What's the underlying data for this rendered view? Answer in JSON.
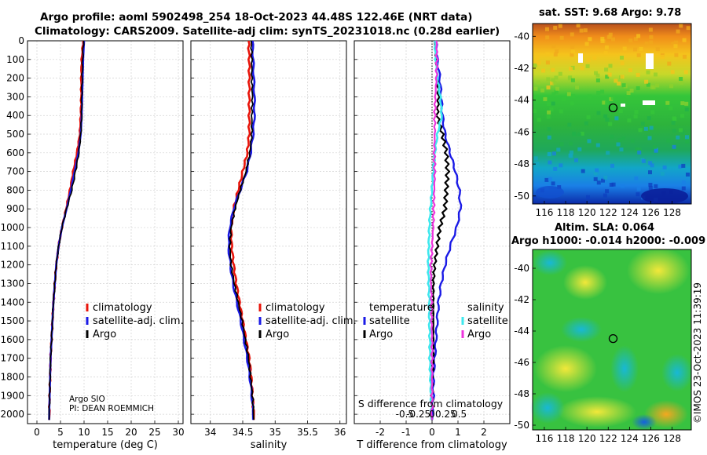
{
  "header": {
    "title_line1": "Argo profile: aoml 5902498_254 18-Oct-2023 44.48S 122.46E (NRT data)",
    "title_line2": "Climatology: CARS2009. Satellite-adj clim: synTS_20231018.nc (0.28d earlier)"
  },
  "maps": {
    "sst_title": "sat. SST: 9.68 Argo: 9.78",
    "sla_title_line1": "Altim. SLA: 0.064",
    "sla_title_line2": "Argo h1000: -0.014 h2000: -0.009",
    "credit": "©IMOS 23-Oct-2023 11:39:19",
    "float_lon": 122.46,
    "float_lat": -44.48,
    "lon_ticks": [
      116,
      118,
      120,
      122,
      124,
      126,
      128
    ],
    "lat_ticks": [
      -40,
      -42,
      -44,
      -46,
      -48,
      -50
    ]
  },
  "colors": {
    "climatology": "#e8140a",
    "satellite_adj": "#1a1ae6",
    "argo": "#000000",
    "temp_satellite": "#1a1ae6",
    "sal_satellite": "#3ee8ee",
    "sal_argo": "#ee33dd"
  },
  "chart_data": [
    {
      "type": "line",
      "name": "temperature-profile",
      "xlabel": "temperature (deg C)",
      "xlim": [
        -2,
        31
      ],
      "ylim": [
        2050,
        0
      ],
      "xticks": [
        0,
        5,
        10,
        15,
        20,
        25,
        30
      ],
      "yticks": [
        0,
        100,
        200,
        300,
        400,
        500,
        600,
        700,
        800,
        900,
        1000,
        1100,
        1200,
        1300,
        1400,
        1500,
        1600,
        1700,
        1800,
        1900,
        2000
      ],
      "depth": [
        0,
        100,
        200,
        300,
        400,
        500,
        600,
        700,
        800,
        900,
        1000,
        1100,
        1200,
        1300,
        1400,
        1500,
        1600,
        1700,
        1800,
        1900,
        2000
      ],
      "series": [
        {
          "name": "climatology",
          "values": [
            9.8,
            9.5,
            9.4,
            9.4,
            9.3,
            9.1,
            8.5,
            7.7,
            7.0,
            6.2,
            5.3,
            4.6,
            4.1,
            3.8,
            3.5,
            3.3,
            3.1,
            2.9,
            2.8,
            2.7,
            2.6
          ]
        },
        {
          "name": "satellite-adj. clim.",
          "values": [
            10.0,
            9.8,
            9.7,
            9.6,
            9.5,
            9.3,
            8.8,
            8.0,
            7.2,
            6.3,
            5.3,
            4.6,
            4.1,
            3.8,
            3.5,
            3.3,
            3.1,
            2.9,
            2.8,
            2.7,
            2.6
          ]
        },
        {
          "name": "Argo",
          "values": [
            9.9,
            9.7,
            9.6,
            9.5,
            9.5,
            9.3,
            8.9,
            8.2,
            7.4,
            6.3,
            5.3,
            4.6,
            4.1,
            3.8,
            3.5,
            3.3,
            3.1,
            2.9,
            2.8,
            2.7,
            2.6
          ]
        }
      ],
      "legend": [
        "climatology",
        "satellite-adj. clim.",
        "Argo"
      ],
      "annotation_line1": "Argo SIO",
      "annotation_line2": "PI: DEAN ROEMMICH"
    },
    {
      "type": "line",
      "name": "salinity-profile",
      "xlabel": "salinity",
      "xlim": [
        33.7,
        36.1
      ],
      "ylim": [
        2050,
        0
      ],
      "xticks": [
        34,
        34.5,
        35,
        35.5,
        36
      ],
      "depth": [
        0,
        100,
        200,
        300,
        400,
        500,
        600,
        700,
        800,
        900,
        1000,
        1100,
        1200,
        1300,
        1400,
        1500,
        1600,
        1700,
        1800,
        1900,
        2000
      ],
      "series": [
        {
          "name": "climatology",
          "values": [
            34.59,
            34.6,
            34.6,
            34.6,
            34.6,
            34.6,
            34.57,
            34.5,
            34.43,
            34.36,
            34.32,
            34.33,
            34.36,
            34.4,
            34.45,
            34.5,
            34.55,
            34.6,
            34.63,
            34.65,
            34.67
          ]
        },
        {
          "name": "satellite-adj. clim.",
          "values": [
            34.65,
            34.66,
            34.67,
            34.68,
            34.68,
            34.66,
            34.62,
            34.56,
            34.46,
            34.36,
            34.3,
            34.28,
            34.31,
            34.35,
            34.41,
            34.47,
            34.52,
            34.57,
            34.61,
            34.64,
            34.66
          ]
        },
        {
          "name": "Argo",
          "values": [
            34.63,
            34.64,
            34.64,
            34.65,
            34.64,
            34.64,
            34.61,
            34.55,
            34.46,
            34.38,
            34.32,
            34.3,
            34.32,
            34.37,
            34.43,
            34.49,
            34.54,
            34.59,
            34.62,
            34.65,
            34.67
          ]
        }
      ],
      "legend": [
        "climatology",
        "satellite-adj. clim.",
        "Argo"
      ]
    },
    {
      "type": "line",
      "name": "difference-profile",
      "xlabel": "T difference from climatology",
      "s_axis_label": "S difference from climatology",
      "xlim": [
        -3,
        3
      ],
      "ylim": [
        2050,
        0
      ],
      "t_xticks": [
        -2,
        -1,
        0,
        1,
        2
      ],
      "s_tick_labels": [
        "-0.5",
        "-0.25",
        "0",
        "0.25",
        "0.5"
      ],
      "s_tick_values": [
        -0.5,
        -0.25,
        0,
        0.25,
        0.5
      ],
      "depth": [
        0,
        100,
        200,
        300,
        400,
        500,
        600,
        700,
        800,
        900,
        1000,
        1100,
        1200,
        1300,
        1400,
        1500,
        1600,
        1700,
        1800,
        1900,
        2000
      ],
      "series": [
        {
          "name": "temperature satellite",
          "values": [
            0.15,
            0.2,
            0.3,
            0.35,
            0.4,
            0.5,
            0.7,
            0.9,
            1.05,
            1.1,
            0.95,
            0.7,
            0.5,
            0.35,
            0.25,
            0.2,
            0.15,
            0.1,
            0.05,
            0.05,
            0.0
          ]
        },
        {
          "name": "temperature Argo",
          "values": [
            0.1,
            0.15,
            0.2,
            0.25,
            0.2,
            0.4,
            0.55,
            0.6,
            0.55,
            0.5,
            0.3,
            0.2,
            0.1,
            0.05,
            0.05,
            0.05,
            0.05,
            0.05,
            0.0,
            0.0,
            0.0
          ]
        },
        {
          "name": "salinity satellite",
          "values": [
            0.05,
            0.07,
            0.1,
            0.15,
            0.18,
            0.1,
            0.05,
            0.02,
            0.0,
            -0.03,
            -0.05,
            -0.06,
            -0.07,
            -0.06,
            -0.05,
            -0.05,
            -0.04,
            -0.04,
            -0.03,
            -0.02,
            -0.01
          ]
        },
        {
          "name": "salinity Argo",
          "values": [
            0.08,
            0.09,
            0.08,
            0.06,
            0.05,
            0.05,
            0.04,
            0.05,
            0.04,
            0.03,
            0.02,
            0.0,
            -0.02,
            -0.02,
            -0.01,
            -0.01,
            0.0,
            0.0,
            0.0,
            0.0,
            0.0
          ]
        }
      ],
      "legend_temperature_title": "temperature",
      "legend_salinity_title": "salinity",
      "legend_items": [
        "satellite",
        "Argo"
      ]
    }
  ]
}
